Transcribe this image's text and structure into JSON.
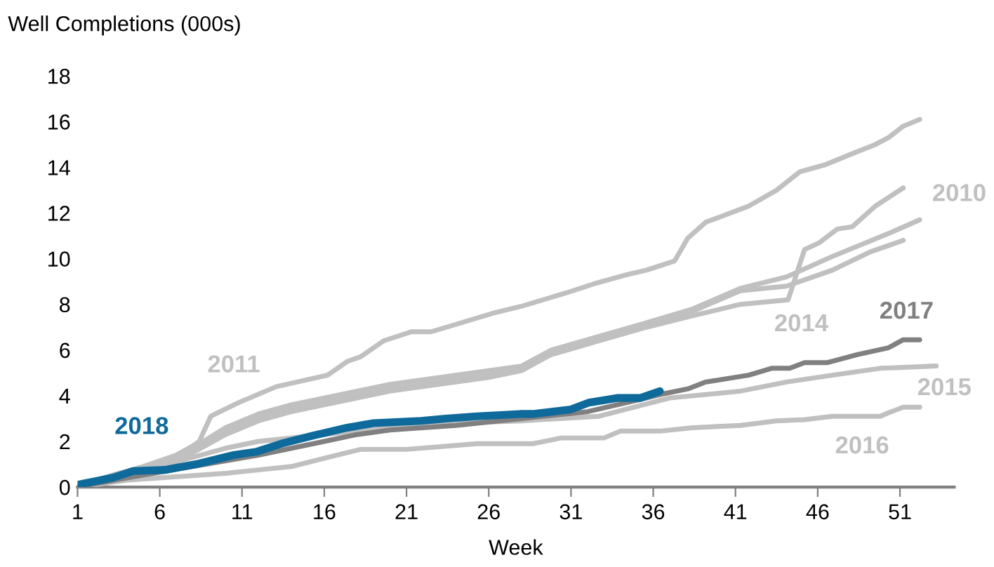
{
  "chart_data": {
    "type": "line",
    "title": "Well Completions (000s)",
    "xlabel": "Week",
    "xlim": [
      1,
      54.3
    ],
    "xticks": [
      1,
      6,
      11,
      16,
      21,
      26,
      31,
      36,
      41,
      46,
      51
    ],
    "ylim": [
      0,
      18
    ],
    "yticks": [
      0,
      2,
      4,
      6,
      8,
      10,
      12,
      14,
      16,
      18
    ],
    "grid": false,
    "legend": false,
    "marker": "none",
    "line_style": "solid",
    "series": [
      {
        "name": "2011",
        "color": "#c0c0c0",
        "x": [
          1,
          3,
          5,
          7,
          8,
          8.4,
          9.1,
          10.8,
          13.1,
          16.2,
          17.4,
          18.2,
          19.6,
          21.3,
          22.5,
          23.9,
          26.2,
          27.9,
          29.3,
          30.7,
          32.4,
          34.4,
          35.6,
          37.3,
          38.1,
          39.2,
          40.7,
          41.8,
          43.5,
          44.9,
          46.4,
          48.1,
          49.5,
          50.3,
          51.2,
          52.2
        ],
        "values": [
          0,
          0.5,
          0.9,
          1.4,
          1.8,
          2.0,
          3.1,
          3.7,
          4.4,
          4.9,
          5.5,
          5.7,
          6.4,
          6.8,
          6.8,
          7.1,
          7.6,
          7.9,
          8.2,
          8.5,
          8.9,
          9.3,
          9.5,
          9.9,
          10.9,
          11.6,
          12.0,
          12.3,
          13.0,
          13.8,
          14.1,
          14.6,
          15.0,
          15.3,
          15.8,
          16.1
        ]
      },
      {
        "name": "2010",
        "color": "#c0c0c0",
        "x": [
          1,
          4,
          6,
          8,
          10,
          12,
          14,
          16,
          18,
          20,
          22,
          24,
          26,
          28,
          29.8,
          32.7,
          35.6,
          38.4,
          41.3,
          44.1,
          46.9,
          50.3,
          52.2
        ],
        "values": [
          0,
          0.6,
          1.0,
          1.7,
          2.6,
          3.2,
          3.6,
          3.9,
          4.2,
          4.5,
          4.7,
          4.9,
          5.1,
          5.3,
          6.0,
          6.6,
          7.2,
          7.8,
          8.7,
          9.2,
          10.1,
          11.1,
          11.7
        ]
      },
      {
        "color": "#c0c0c0",
        "x": [
          1,
          4,
          6,
          8,
          10,
          12,
          14,
          16,
          18,
          20,
          22,
          24,
          26,
          28,
          29.8,
          32.7,
          35.6,
          38.4,
          41.3,
          44.1,
          46.9,
          49.2,
          51.2
        ],
        "values": [
          0,
          0.6,
          1.0,
          1.6,
          2.4,
          3.0,
          3.4,
          3.7,
          4.0,
          4.3,
          4.5,
          4.7,
          4.9,
          5.2,
          5.9,
          6.5,
          7.1,
          7.7,
          8.6,
          8.8,
          9.5,
          10.3,
          10.8
        ]
      },
      {
        "name": "2014",
        "color": "#c0c0c0",
        "x": [
          1,
          4,
          6,
          8,
          10,
          12,
          14,
          16,
          18,
          20,
          22,
          24,
          26,
          28,
          29.8,
          32.7,
          35.6,
          38.4,
          41.3,
          44.2,
          45.2,
          46.1,
          47.2,
          48.1,
          49.5,
          51.2
        ],
        "values": [
          0,
          0.5,
          0.9,
          1.5,
          2.3,
          2.9,
          3.3,
          3.6,
          3.9,
          4.2,
          4.4,
          4.6,
          4.8,
          5.1,
          5.8,
          6.4,
          7.0,
          7.5,
          8.0,
          8.2,
          10.4,
          10.7,
          11.3,
          11.4,
          12.3,
          13.1
        ]
      },
      {
        "name": "2015",
        "color": "#c0c0c0",
        "x": [
          1,
          4,
          6,
          8,
          10,
          12,
          16,
          20,
          24,
          28,
          32.7,
          37,
          41.3,
          44.1,
          46.9,
          49.8,
          53.2
        ],
        "values": [
          0,
          0.5,
          0.9,
          1.3,
          1.7,
          2.0,
          2.3,
          2.6,
          2.8,
          2.9,
          3.1,
          3.9,
          4.2,
          4.6,
          4.9,
          5.2,
          5.3
        ]
      },
      {
        "name": "2016",
        "color": "#c0c0c0",
        "x": [
          1,
          4,
          8,
          10,
          12,
          14,
          16.5,
          18.2,
          21,
          25.3,
          28.7,
          30.4,
          33,
          34,
          36.4,
          38.4,
          41.3,
          43.5,
          45.2,
          46.9,
          49.8,
          50.3,
          51.2,
          52.2
        ],
        "values": [
          0,
          0.3,
          0.5,
          0.6,
          0.75,
          0.9,
          1.35,
          1.65,
          1.65,
          1.9,
          1.9,
          2.15,
          2.15,
          2.45,
          2.45,
          2.6,
          2.7,
          2.9,
          2.95,
          3.1,
          3.1,
          3.25,
          3.5,
          3.5
        ]
      },
      {
        "name": "2017",
        "color": "#808080",
        "x": [
          1,
          4,
          8,
          12,
          14,
          16,
          18,
          20,
          24,
          28,
          32,
          35,
          36.4,
          38.1,
          39.2,
          41.8,
          43.2,
          44.3,
          45.2,
          46.6,
          48.4,
          50.3,
          51.2,
          52.2
        ],
        "values": [
          0,
          0.4,
          0.9,
          1.4,
          1.7,
          2.0,
          2.3,
          2.5,
          2.7,
          3.0,
          3.3,
          3.8,
          4.05,
          4.3,
          4.6,
          4.9,
          5.2,
          5.2,
          5.45,
          5.45,
          5.8,
          6.1,
          6.45,
          6.45
        ]
      },
      {
        "name": "2018",
        "color": "#0e6a9b",
        "x": [
          1,
          3.1,
          4.4,
          6.3,
          8.2,
          10.5,
          11.9,
          13.4,
          15.3,
          17.4,
          19,
          21.9,
          23.4,
          25.3,
          27.9,
          28.7,
          31,
          32.1,
          33.8,
          35.2,
          36.4
        ],
        "values": [
          0.1,
          0.4,
          0.7,
          0.75,
          1.0,
          1.4,
          1.55,
          1.9,
          2.25,
          2.6,
          2.8,
          2.9,
          3.0,
          3.1,
          3.2,
          3.2,
          3.4,
          3.7,
          3.9,
          3.9,
          4.2
        ]
      }
    ]
  }
}
